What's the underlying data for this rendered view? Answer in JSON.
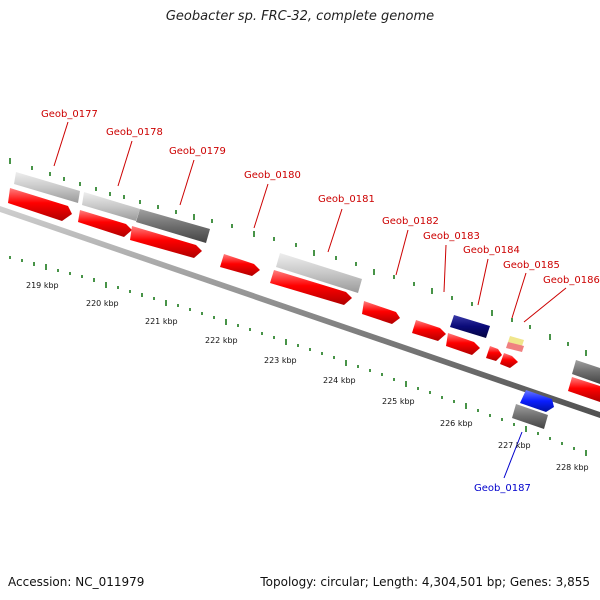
{
  "title": "Geobacter sp. FRC-32, complete genome",
  "footer": {
    "accession": "Accession: NC_011979",
    "summary": "Topology: circular; Length: 4,304,501 bp; Genes: 3,855"
  },
  "colors": {
    "cds_forward": "#ff0000",
    "cds_reverse": "#ff0000",
    "light_grey": "#c8c8c8",
    "dark_grey": "#6e6e6e",
    "navy": "#0a0a78",
    "blue": "#0a1eff",
    "tick_green": "#1a7a1a",
    "label_red": "#cc0000",
    "label_blue": "#0000cc",
    "backbone": "#808080"
  },
  "scale_labels": [
    "219 kbp",
    "220 kbp",
    "221 kbp",
    "222 kbp",
    "223 kbp",
    "224 kbp",
    "225 kbp",
    "226 kbp",
    "227 kbp",
    "228 kbp"
  ],
  "genes": [
    {
      "id": "Geob_0177",
      "strand": "+",
      "color": "red"
    },
    {
      "id": "Geob_0178",
      "strand": "+",
      "color": "red"
    },
    {
      "id": "Geob_0179",
      "strand": "+",
      "color": "red"
    },
    {
      "id": "Geob_0180",
      "strand": "+",
      "color": "red"
    },
    {
      "id": "Geob_0181",
      "strand": "+",
      "color": "red"
    },
    {
      "id": "Geob_0182",
      "strand": "+",
      "color": "red"
    },
    {
      "id": "Geob_0183",
      "strand": "+",
      "color": "red"
    },
    {
      "id": "Geob_0184",
      "strand": "+",
      "color": "red"
    },
    {
      "id": "Geob_0185",
      "strand": "+",
      "color": "red"
    },
    {
      "id": "Geob_0186",
      "strand": "+",
      "color": "red"
    },
    {
      "id": "Geob_0187",
      "strand": "-",
      "color": "blue"
    }
  ]
}
